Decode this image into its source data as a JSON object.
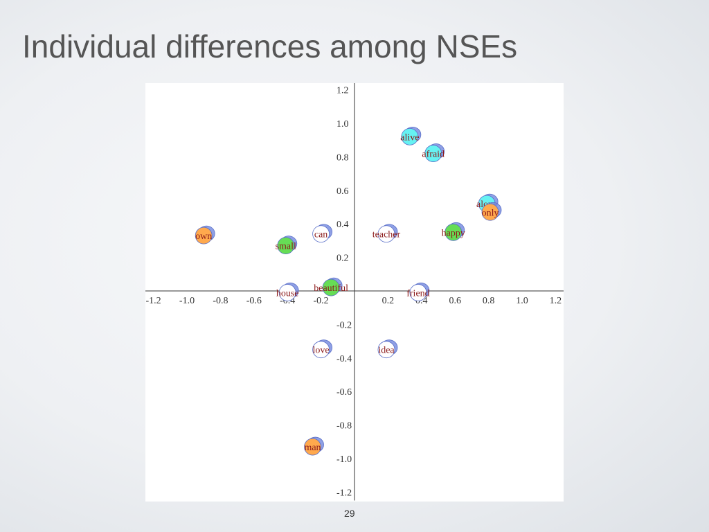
{
  "slide": {
    "title": "Individual differences among NSEs",
    "page_number": "29"
  },
  "colors": {
    "cyan": "#66f2f2",
    "orange": "#ffa94d",
    "green": "#66dd55",
    "white": "#ffffff",
    "shadow": "#7b8fe0",
    "label": "#8b1a1a"
  },
  "chart_data": {
    "type": "scatter",
    "title": "",
    "xlabel": "",
    "ylabel": "",
    "xlim": [
      -1.25,
      1.25
    ],
    "ylim": [
      -1.25,
      1.25
    ],
    "grid": false,
    "x_ticks": [
      "-1.2",
      "-1.0",
      "-0.8",
      "-0.6",
      "-0.4",
      "-0.2",
      "0.2",
      "0.4",
      "0.6",
      "0.8",
      "1.0",
      "1.2"
    ],
    "x_tick_values": [
      -1.2,
      -1.0,
      -0.8,
      -0.6,
      -0.4,
      -0.2,
      0.2,
      0.4,
      0.6,
      0.8,
      1.0,
      1.2
    ],
    "y_ticks": [
      "1.2",
      "1.0",
      "0.8",
      "0.6",
      "0.4",
      "0.2",
      "-0.2",
      "-0.4",
      "-0.6",
      "-0.8",
      "-1.0",
      "-1.2"
    ],
    "y_tick_values": [
      1.2,
      1.0,
      0.8,
      0.6,
      0.4,
      0.2,
      -0.2,
      -0.4,
      -0.6,
      -0.8,
      -1.0,
      -1.2
    ],
    "points": [
      {
        "label": "alive",
        "x": 0.33,
        "y": 0.92,
        "color": "cyan"
      },
      {
        "label": "afraid",
        "x": 0.47,
        "y": 0.82,
        "color": "cyan"
      },
      {
        "label": "alone",
        "x": 0.79,
        "y": 0.52,
        "color": "cyan"
      },
      {
        "label": "only",
        "x": 0.81,
        "y": 0.47,
        "color": "orange"
      },
      {
        "label": "happy",
        "x": 0.59,
        "y": 0.35,
        "color": "green"
      },
      {
        "label": "teacher",
        "x": 0.19,
        "y": 0.34,
        "color": "white"
      },
      {
        "label": "can",
        "x": -0.2,
        "y": 0.34,
        "color": "white"
      },
      {
        "label": "own",
        "x": -0.9,
        "y": 0.33,
        "color": "orange"
      },
      {
        "label": "small",
        "x": -0.41,
        "y": 0.27,
        "color": "green"
      },
      {
        "label": "house",
        "x": -0.4,
        "y": -0.01,
        "color": "white"
      },
      {
        "label": "beautiful",
        "x": -0.14,
        "y": 0.02,
        "color": "green"
      },
      {
        "label": "friend",
        "x": 0.38,
        "y": -0.01,
        "color": "white"
      },
      {
        "label": "love",
        "x": -0.2,
        "y": -0.35,
        "color": "white"
      },
      {
        "label": "idea",
        "x": 0.19,
        "y": -0.35,
        "color": "white"
      },
      {
        "label": "man",
        "x": -0.25,
        "y": -0.93,
        "color": "orange"
      }
    ]
  }
}
